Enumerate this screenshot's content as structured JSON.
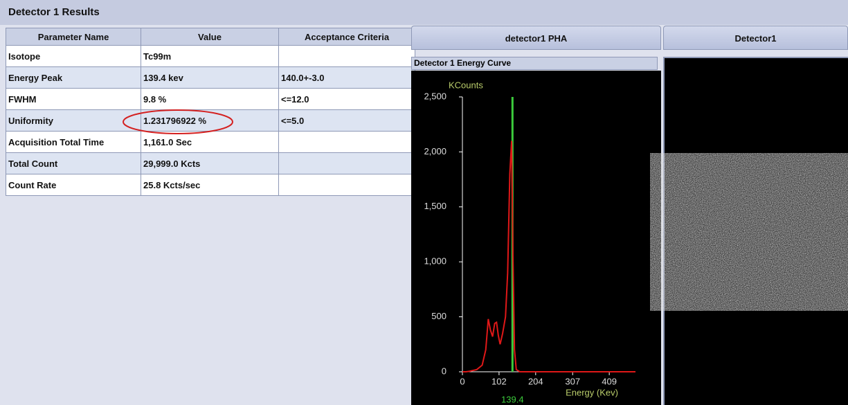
{
  "header": {
    "title": "Detector 1 Results"
  },
  "table": {
    "columns": [
      "Parameter Name",
      "Value",
      "Acceptance Criteria"
    ],
    "rows": [
      [
        "Isotope",
        "Tc99m",
        null
      ],
      [
        "Energy Peak",
        "139.4 kev",
        "140.0+-3.0"
      ],
      [
        "FWHM",
        "9.8 %",
        "<=12.0"
      ],
      [
        "Uniformity",
        "1.231796922 %",
        "<=5.0"
      ],
      [
        "Acquisition Total Time",
        "1,161.0 Sec",
        null
      ],
      [
        "Total Count",
        "29,999.0 Kcts",
        null
      ],
      [
        "Count Rate",
        "25.8 Kcts/sec",
        null
      ]
    ]
  },
  "tabs": [
    "detector1 PHA",
    "Detector1"
  ],
  "energy_curve": {
    "type": "line",
    "title": "Detector 1 Energy Curve",
    "y_label": "KCounts",
    "x_label": "Energy (Kev)",
    "xlim": [
      0,
      482
    ],
    "ylim": [
      0,
      2500
    ],
    "xticks": [
      0,
      102,
      204,
      307,
      409
    ],
    "yticks": [
      0,
      500,
      {
        "value": 1000,
        "label": "1,000"
      },
      {
        "value": 1500,
        "label": "1,500"
      },
      {
        "value": 2000,
        "label": "2,000"
      },
      {
        "value": 2500,
        "label": "2,500"
      }
    ],
    "peak": 139.4,
    "peak_color": "#3ccc3c",
    "color": "#e01818",
    "x": [
      0,
      10,
      20,
      40,
      55,
      65,
      72,
      78,
      84,
      90,
      95,
      100,
      105,
      112,
      120,
      126,
      132,
      137,
      141,
      145,
      150,
      160,
      250,
      350,
      482
    ],
    "values": [
      0,
      0,
      5,
      20,
      60,
      200,
      480,
      380,
      320,
      440,
      450,
      330,
      250,
      350,
      500,
      900,
      1800,
      2100,
      1000,
      200,
      20,
      0,
      0,
      0,
      0
    ]
  }
}
